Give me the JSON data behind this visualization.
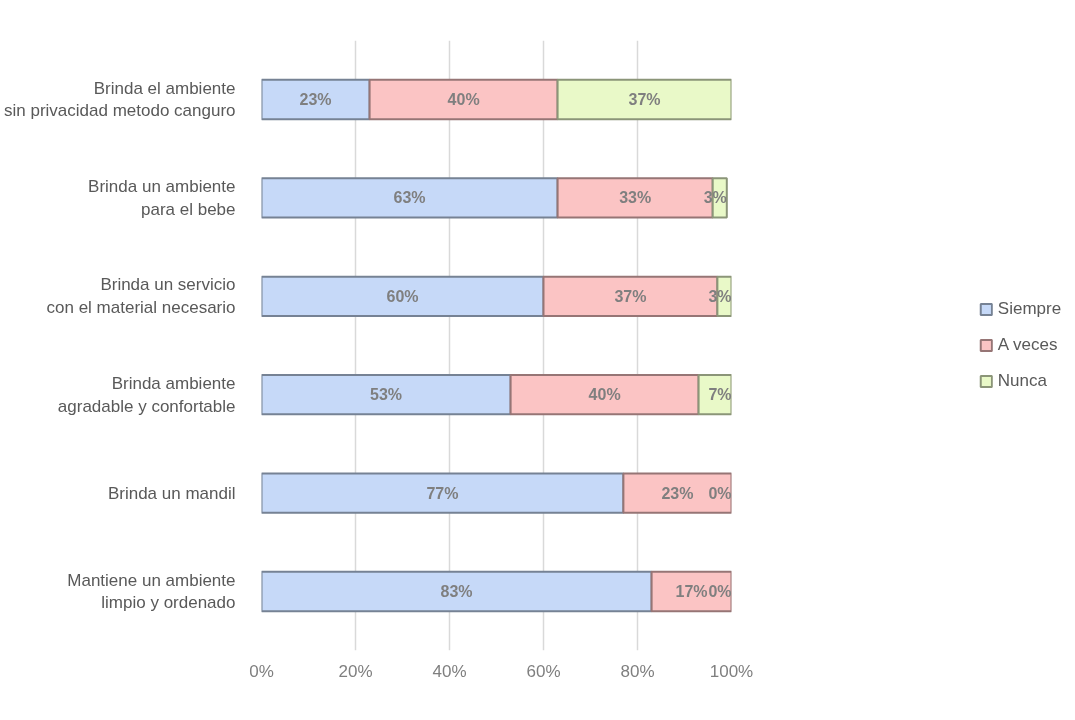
{
  "chart_data": {
    "type": "bar",
    "orientation": "horizontal",
    "stacked": true,
    "categories": [
      "Brinda el ambiente\nsin privacidad metodo canguro",
      "Brinda un ambiente\npara el bebe",
      "Brinda un servicio\ncon el material necesario",
      "Brinda ambiente\nagradable y confortable",
      "Brinda un mandil",
      "Mantiene un ambiente\nlimpio y ordenado"
    ],
    "series": [
      {
        "name": "Siempre",
        "color": "#c6d9f8",
        "values": [
          23,
          63,
          60,
          53,
          77,
          83
        ],
        "value_labels": [
          "23%",
          "63%",
          "60%",
          "53%",
          "77%",
          "83%"
        ]
      },
      {
        "name": "A veces",
        "color": "#fbc4c4",
        "values": [
          40,
          33,
          37,
          40,
          23,
          17
        ],
        "value_labels": [
          "40%",
          "33%",
          "37%",
          "40%",
          "23%",
          "17%"
        ]
      },
      {
        "name": "Nunca",
        "color": "#e9f9c8",
        "values": [
          37,
          3,
          3,
          7,
          0,
          0
        ],
        "value_labels": [
          "37%",
          "3%",
          "3%",
          "7%",
          "0%",
          "0%"
        ]
      }
    ],
    "xlim": [
      0,
      100
    ],
    "xticks": [
      {
        "value": 0,
        "label": "0%"
      },
      {
        "value": 20,
        "label": "20%"
      },
      {
        "value": 40,
        "label": "40%"
      },
      {
        "value": 60,
        "label": "60%"
      },
      {
        "value": 80,
        "label": "80%"
      },
      {
        "value": 100,
        "label": "100%"
      }
    ],
    "grid": "x",
    "legend": "right"
  }
}
